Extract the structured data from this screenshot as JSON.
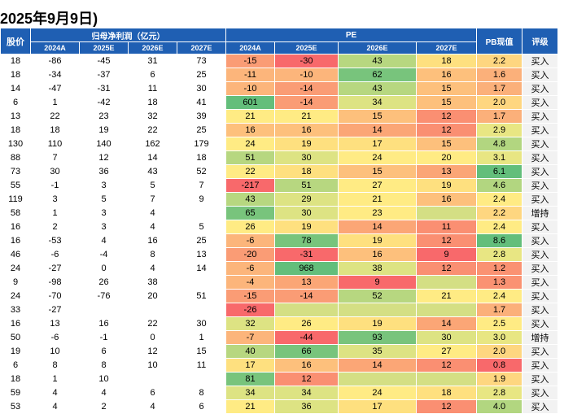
{
  "title": "2025年9月9日)",
  "header": {
    "stock": "股价",
    "net_profit": "归母净利润（亿元）",
    "pe": "PE",
    "pb": "PB现值",
    "rating": "评级",
    "years": [
      "2024A",
      "2025E",
      "2026E",
      "2027E"
    ]
  },
  "colors": {
    "header_bg": "#1f5fb3",
    "scale_low": "#63be7b",
    "scale_mid": "#ffeb84",
    "scale_high": "#f8696b"
  },
  "rows": [
    {
      "price": "18",
      "np": [
        "-86",
        "-45",
        "31",
        "73"
      ],
      "pe": [
        "-15",
        "-30",
        "43",
        "18"
      ],
      "pb": "2.2",
      "rating": "买入"
    },
    {
      "price": "18",
      "np": [
        "-34",
        "-37",
        "6",
        "25"
      ],
      "pe": [
        "-11",
        "-10",
        "62",
        "16"
      ],
      "pb": "1.6",
      "rating": "买入"
    },
    {
      "price": "14",
      "np": [
        "-47",
        "-31",
        "11",
        "30"
      ],
      "pe": [
        "-10",
        "-14",
        "43",
        "15"
      ],
      "pb": "1.7",
      "rating": "买入"
    },
    {
      "price": "6",
      "np": [
        "1",
        "-42",
        "18",
        "41"
      ],
      "pe": [
        "601",
        "-14",
        "34",
        "15"
      ],
      "pb": "2.0",
      "rating": "买入"
    },
    {
      "price": "13",
      "np": [
        "22",
        "23",
        "32",
        "39"
      ],
      "pe": [
        "21",
        "21",
        "15",
        "12"
      ],
      "pb": "1.7",
      "rating": "买入"
    },
    {
      "price": "18",
      "np": [
        "18",
        "19",
        "22",
        "25"
      ],
      "pe": [
        "16",
        "16",
        "14",
        "12"
      ],
      "pb": "2.9",
      "rating": "买入"
    },
    {
      "price": "130",
      "np": [
        "110",
        "140",
        "162",
        "179"
      ],
      "pe": [
        "24",
        "19",
        "17",
        "15"
      ],
      "pb": "4.8",
      "rating": "买入"
    },
    {
      "price": "88",
      "np": [
        "7",
        "12",
        "14",
        "18"
      ],
      "pe": [
        "51",
        "30",
        "24",
        "20"
      ],
      "pb": "3.1",
      "rating": "买入"
    },
    {
      "price": "73",
      "np": [
        "30",
        "36",
        "43",
        "52"
      ],
      "pe": [
        "22",
        "18",
        "15",
        "13"
      ],
      "pb": "6.1",
      "rating": "买入"
    },
    {
      "price": "55",
      "np": [
        "-1",
        "3",
        "5",
        "7"
      ],
      "pe": [
        "-217",
        "51",
        "27",
        "19"
      ],
      "pb": "4.6",
      "rating": "买入"
    },
    {
      "price": "119",
      "np": [
        "3",
        "5",
        "7",
        "9"
      ],
      "pe": [
        "43",
        "29",
        "21",
        "16"
      ],
      "pb": "2.4",
      "rating": "买入"
    },
    {
      "price": "58",
      "np": [
        "1",
        "3",
        "4",
        ""
      ],
      "pe": [
        "65",
        "30",
        "23",
        ""
      ],
      "pb": "2.2",
      "rating": "增持"
    },
    {
      "price": "16",
      "np": [
        "2",
        "3",
        "4",
        "5"
      ],
      "pe": [
        "26",
        "19",
        "14",
        "11"
      ],
      "pb": "2.4",
      "rating": "买入"
    },
    {
      "price": "16",
      "np": [
        "-53",
        "4",
        "16",
        "25"
      ],
      "pe": [
        "-6",
        "78",
        "19",
        "12"
      ],
      "pb": "8.6",
      "rating": "买入"
    },
    {
      "price": "46",
      "np": [
        "-6",
        "-4",
        "8",
        "13"
      ],
      "pe": [
        "-20",
        "-31",
        "16",
        "9"
      ],
      "pb": "2.8",
      "rating": "买入"
    },
    {
      "price": "24",
      "np": [
        "-27",
        "0",
        "4",
        "14"
      ],
      "pe": [
        "-6",
        "968",
        "38",
        "12"
      ],
      "pb": "1.2",
      "rating": "买入"
    },
    {
      "price": "9",
      "np": [
        "-98",
        "26",
        "38",
        ""
      ],
      "pe": [
        "-4",
        "13",
        "9",
        ""
      ],
      "pb": "1.3",
      "rating": "买入"
    },
    {
      "price": "24",
      "np": [
        "-70",
        "-76",
        "20",
        "51"
      ],
      "pe": [
        "-15",
        "-14",
        "52",
        "21"
      ],
      "pb": "2.4",
      "rating": "买入"
    },
    {
      "price": "33",
      "np": [
        "-27",
        "",
        "",
        ""
      ],
      "pe": [
        "-26",
        "",
        "",
        ""
      ],
      "pb": "1.7",
      "rating": "买入"
    },
    {
      "price": "16",
      "np": [
        "13",
        "16",
        "22",
        "30"
      ],
      "pe": [
        "32",
        "26",
        "19",
        "14"
      ],
      "pb": "2.5",
      "rating": "买入"
    },
    {
      "price": "50",
      "np": [
        "-6",
        "-1",
        "0",
        "1"
      ],
      "pe": [
        "-7",
        "-44",
        "93",
        "30"
      ],
      "pb": "3.0",
      "rating": "增持"
    },
    {
      "price": "19",
      "np": [
        "10",
        "6",
        "12",
        "15"
      ],
      "pe": [
        "40",
        "66",
        "35",
        "27"
      ],
      "pb": "2.0",
      "rating": "买入"
    },
    {
      "price": "6",
      "np": [
        "8",
        "8",
        "10",
        "11"
      ],
      "pe": [
        "17",
        "16",
        "14",
        "12"
      ],
      "pb": "0.8",
      "rating": "买入"
    },
    {
      "price": "18",
      "np": [
        "1",
        "10",
        "",
        ""
      ],
      "pe": [
        "81",
        "12",
        "",
        ""
      ],
      "pb": "1.9",
      "rating": "买入"
    },
    {
      "price": "59",
      "np": [
        "4",
        "4",
        "6",
        "8"
      ],
      "pe": [
        "34",
        "34",
        "24",
        "18"
      ],
      "pb": "2.8",
      "rating": "买入"
    },
    {
      "price": "53",
      "np": [
        "4",
        "2",
        "4",
        "6"
      ],
      "pe": [
        "21",
        "36",
        "17",
        "12"
      ],
      "pb": "4.0",
      "rating": "买入"
    }
  ]
}
